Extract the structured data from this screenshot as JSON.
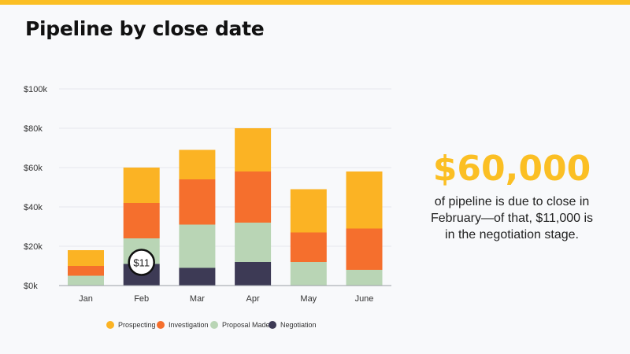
{
  "title": "Pipeline by close date",
  "stat": {
    "value": "$60,000",
    "description": "of pipeline is due to close in February—of that, $11,000 is in the negotiation stage."
  },
  "callout": {
    "category": "Feb",
    "label": "$11"
  },
  "chart_data": {
    "type": "bar",
    "stacked": true,
    "categories": [
      "Jan",
      "Feb",
      "Mar",
      "Apr",
      "May",
      "June"
    ],
    "series": [
      {
        "name": "Negotiation",
        "color": "#3d3a55",
        "values": [
          0,
          11,
          9,
          12,
          0,
          0
        ]
      },
      {
        "name": "Proposal Made",
        "color": "#b9d5b5",
        "values": [
          5,
          13,
          22,
          20,
          12,
          8
        ]
      },
      {
        "name": "Investigation",
        "color": "#f56f2d",
        "values": [
          5,
          18,
          23,
          26,
          15,
          21
        ]
      },
      {
        "name": "Prospecting",
        "color": "#fbb324",
        "values": [
          8,
          18,
          15,
          22,
          22,
          29
        ]
      }
    ],
    "legend_order": [
      "Prospecting",
      "Investigation",
      "Proposal Made",
      "Negotiation"
    ],
    "y_ticks": [
      0,
      20,
      40,
      60,
      80,
      100
    ],
    "y_tick_labels": [
      "$0k",
      "$20k",
      "$40k",
      "$60k",
      "$80k",
      "$100k"
    ],
    "ylim": [
      0,
      100
    ],
    "grid": true,
    "legend_position": "bottom"
  }
}
